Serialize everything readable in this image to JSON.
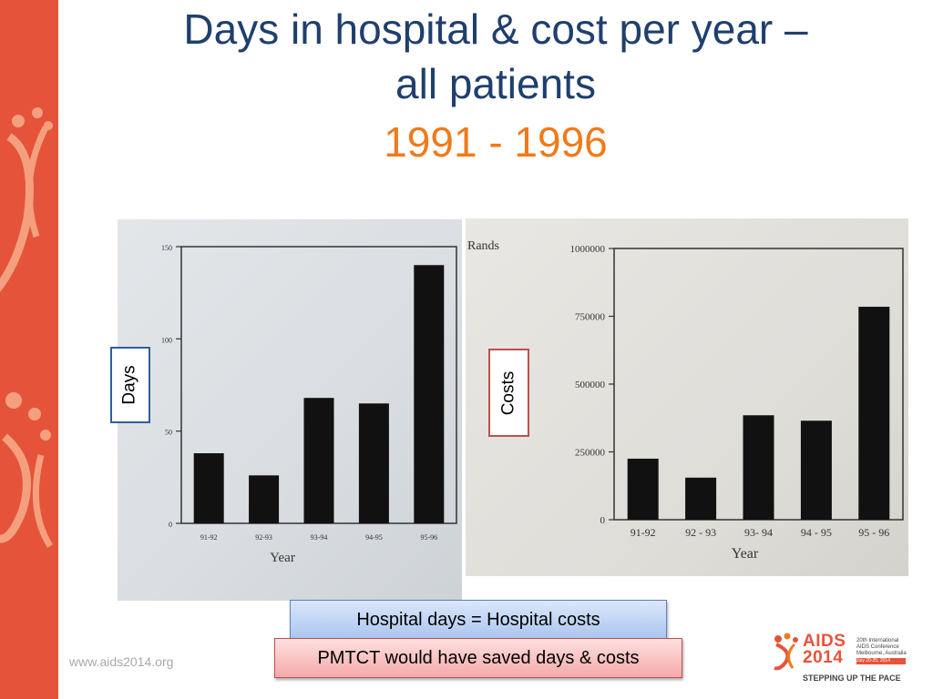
{
  "slide": {
    "title_line1": "Days in hospital & cost per year –",
    "title_line2": "all patients",
    "title_years": "1991 - 1996",
    "days_label": "Days",
    "costs_label": "Costs",
    "note_blue": "Hospital days = Hospital costs",
    "note_red": "PMTCT would have saved days & costs",
    "footer_url": "www.aids2014.org",
    "logo": {
      "name": "AIDS",
      "year": "2014",
      "conf_line1": "20th International",
      "conf_line2": "AIDS Conference",
      "place": "Melbourne, Australia",
      "dates": "July 20-25, 2014",
      "tagline": "STEPPING UP THE PACE"
    },
    "colors": {
      "band": "#e5543a",
      "title": "#1f3f6e",
      "years": "#f07a1a",
      "bars": "#111111"
    }
  },
  "chart_data": [
    {
      "type": "bar",
      "title": "",
      "xlabel": "Year",
      "ylabel": "",
      "categories": [
        "91-92",
        "92-93",
        "93-94",
        "94-95",
        "95-96"
      ],
      "values": [
        38,
        26,
        68,
        65,
        140
      ],
      "ylim": [
        0,
        150
      ],
      "yticks": [
        0,
        50,
        100,
        150
      ],
      "ytick_labels": [
        "0",
        "50",
        "100",
        "150"
      ],
      "grid": false
    },
    {
      "type": "bar",
      "title": "",
      "xlabel": "Year",
      "ylabel": "Rands",
      "categories": [
        "91-92",
        "92 - 93",
        "93- 94",
        "94 - 95",
        "95 - 96"
      ],
      "values": [
        225000,
        155000,
        385000,
        365000,
        785000
      ],
      "ylim": [
        0,
        1000000
      ],
      "yticks": [
        0,
        250000,
        500000,
        750000,
        1000000
      ],
      "ytick_labels": [
        "0",
        "250000",
        "500000",
        "750000",
        "1000000"
      ],
      "grid": false
    }
  ]
}
